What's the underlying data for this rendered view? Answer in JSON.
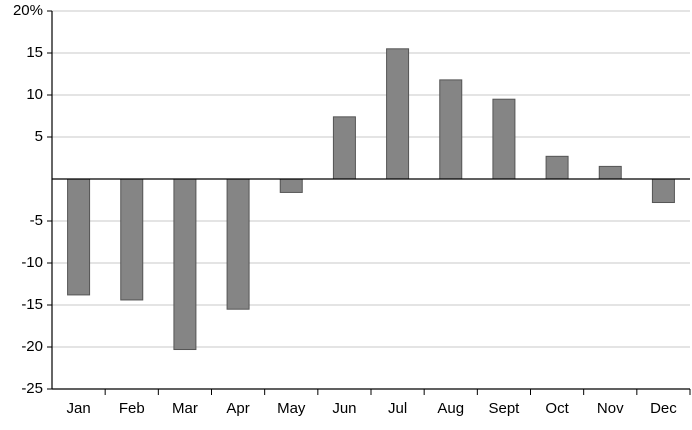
{
  "chart_data": {
    "type": "bar",
    "categories": [
      "Jan",
      "Feb",
      "Mar",
      "Apr",
      "May",
      "Jun",
      "Jul",
      "Aug",
      "Sept",
      "Oct",
      "Nov",
      "Dec"
    ],
    "values": [
      -13.8,
      -14.4,
      -20.3,
      -15.5,
      -1.6,
      7.4,
      15.5,
      11.8,
      9.5,
      2.7,
      1.5,
      -2.8
    ],
    "color": "#858585",
    "ylim": [
      -25,
      20
    ],
    "yticks": [
      -25,
      -20,
      -15,
      -10,
      -5,
      5,
      10,
      15,
      {
        "value": 20,
        "label": "20%"
      }
    ],
    "grid": true
  }
}
